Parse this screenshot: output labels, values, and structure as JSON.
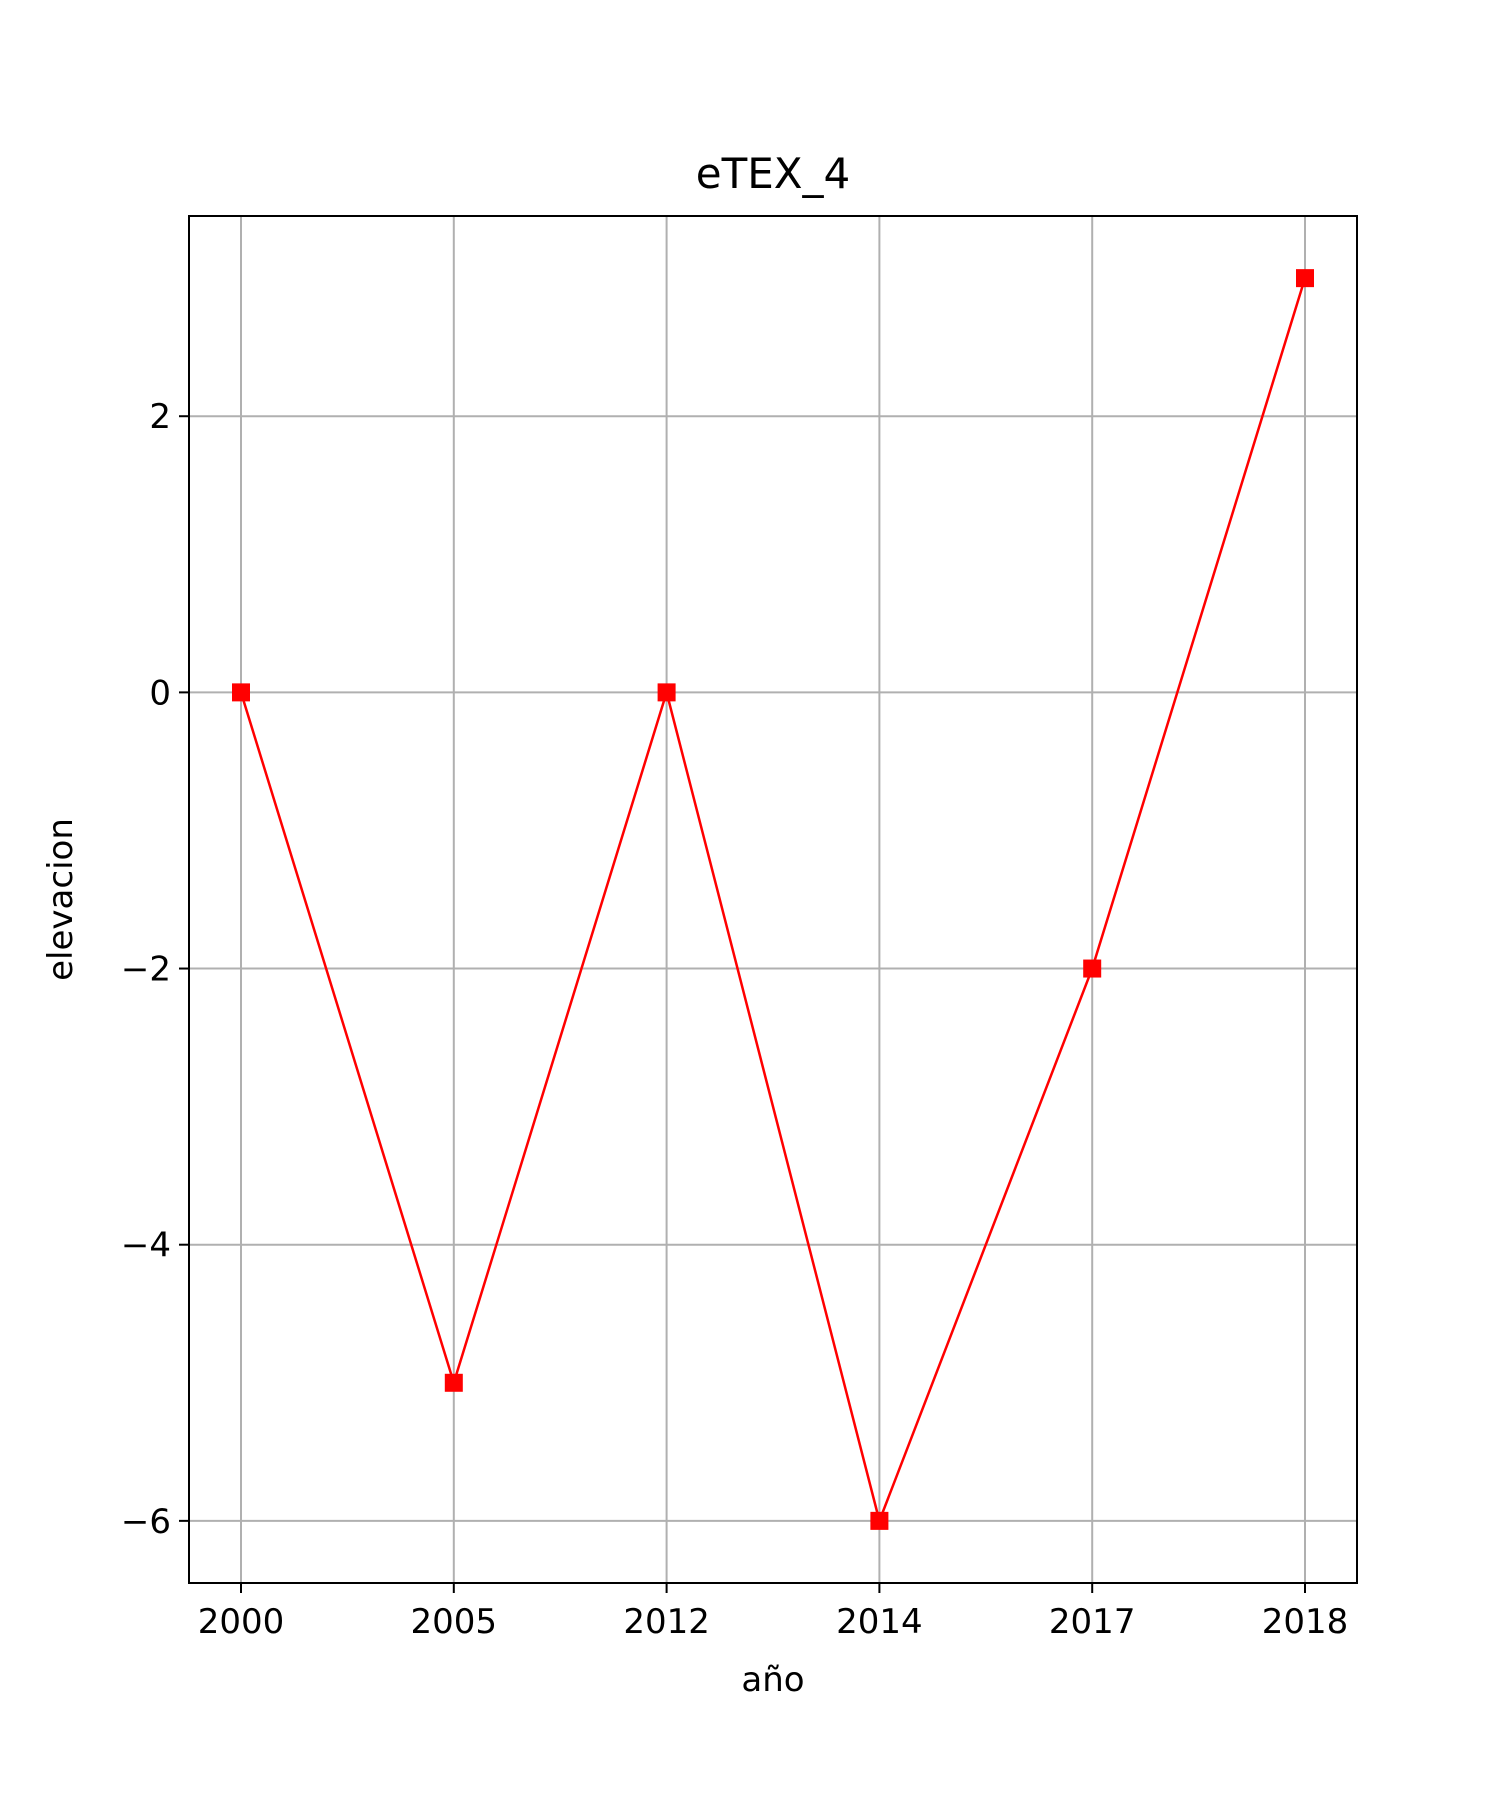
{
  "chart_data": {
    "type": "line",
    "title": "eTEX_4",
    "xlabel": "año",
    "ylabel": "elevacion",
    "categories": [
      "2000",
      "2005",
      "2012",
      "2014",
      "2017",
      "2018"
    ],
    "series": [
      {
        "values": [
          0,
          -5,
          0,
          -6,
          -2,
          3
        ],
        "color": "#ff0000",
        "marker": "square"
      }
    ],
    "ylim": [
      -6.45,
      3.45
    ],
    "yticks": [
      -6,
      -4,
      -2,
      0,
      2
    ],
    "ytick_labels": [
      "−6",
      "−4",
      "−2",
      "0",
      "2"
    ],
    "grid": true,
    "legend": "none"
  }
}
